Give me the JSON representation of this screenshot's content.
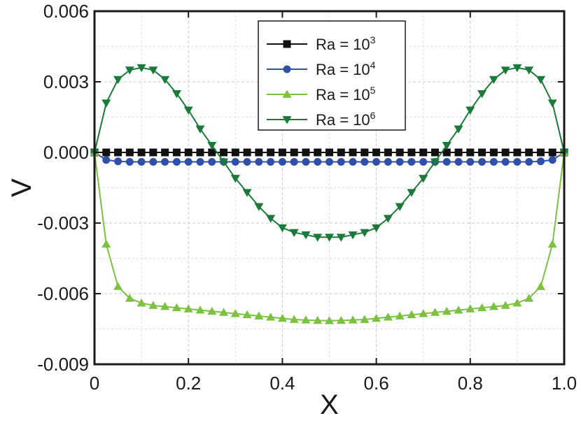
{
  "chart_data": {
    "type": "line",
    "title": "",
    "xlabel": "X",
    "ylabel": "V",
    "xlim": [
      0,
      1.0
    ],
    "ylim": [
      -0.009,
      0.006
    ],
    "grid": true,
    "x_ticks": [
      0,
      0.2,
      0.4,
      0.6,
      0.8,
      1.0
    ],
    "x_tick_labels": [
      "0",
      "0.2",
      "0.4",
      "0.6",
      "0.8",
      "1.0"
    ],
    "y_ticks": [
      -0.009,
      -0.006,
      -0.003,
      0.0,
      0.003,
      0.006
    ],
    "y_tick_labels": [
      "-0.009",
      "-0.006",
      "-0.003",
      "0.000",
      "0.003",
      "0.006"
    ],
    "legend_position": "top-center",
    "x": [
      0.0,
      0.025,
      0.05,
      0.075,
      0.1,
      0.125,
      0.15,
      0.175,
      0.2,
      0.225,
      0.25,
      0.275,
      0.3,
      0.325,
      0.35,
      0.375,
      0.4,
      0.425,
      0.45,
      0.475,
      0.5,
      0.525,
      0.55,
      0.575,
      0.6,
      0.625,
      0.65,
      0.675,
      0.7,
      0.725,
      0.75,
      0.775,
      0.8,
      0.825,
      0.85,
      0.875,
      0.9,
      0.925,
      0.95,
      0.975,
      1.0
    ],
    "series": [
      {
        "name": "Ra = 10^3",
        "label_base": "Ra = 10",
        "label_exp": "3",
        "color": "#111111",
        "marker": "square",
        "values": [
          0.0,
          0.0,
          0.0,
          0.0,
          0.0,
          0.0,
          0.0,
          0.0,
          0.0,
          0.0,
          0.0,
          0.0,
          0.0,
          0.0,
          0.0,
          0.0,
          0.0,
          0.0,
          0.0,
          0.0,
          0.0,
          0.0,
          0.0,
          0.0,
          0.0,
          0.0,
          0.0,
          0.0,
          0.0,
          0.0,
          0.0,
          0.0,
          0.0,
          0.0,
          0.0,
          0.0,
          0.0,
          0.0,
          0.0,
          0.0,
          0.0
        ]
      },
      {
        "name": "Ra = 10^4",
        "label_base": "Ra = 10",
        "label_exp": "4",
        "color": "#2f4fa8",
        "marker": "circle",
        "values": [
          0.0,
          -0.00032,
          -0.00038,
          -0.0004,
          -0.0004,
          -0.0004,
          -0.0004,
          -0.0004,
          -0.0004,
          -0.0004,
          -0.0004,
          -0.0004,
          -0.0004,
          -0.0004,
          -0.0004,
          -0.0004,
          -0.0004,
          -0.0004,
          -0.0004,
          -0.0004,
          -0.0004,
          -0.0004,
          -0.0004,
          -0.0004,
          -0.0004,
          -0.0004,
          -0.0004,
          -0.0004,
          -0.0004,
          -0.0004,
          -0.0004,
          -0.0004,
          -0.0004,
          -0.0004,
          -0.0004,
          -0.0004,
          -0.0004,
          -0.0004,
          -0.00038,
          -0.00032,
          0.0
        ]
      },
      {
        "name": "Ra = 10^5",
        "label_base": "Ra = 10",
        "label_exp": "5",
        "color": "#7cc142",
        "marker": "triangle-up",
        "values": [
          0.0,
          -0.0039,
          -0.0057,
          -0.0062,
          -0.0064,
          -0.0065,
          -0.00655,
          -0.0066,
          -0.00665,
          -0.0067,
          -0.00675,
          -0.0068,
          -0.00685,
          -0.0069,
          -0.00695,
          -0.007,
          -0.00705,
          -0.0071,
          -0.00712,
          -0.00714,
          -0.00715,
          -0.00714,
          -0.00712,
          -0.0071,
          -0.00705,
          -0.007,
          -0.00695,
          -0.0069,
          -0.00685,
          -0.0068,
          -0.00675,
          -0.0067,
          -0.00665,
          -0.0066,
          -0.00655,
          -0.0065,
          -0.0064,
          -0.0062,
          -0.0057,
          -0.0039,
          0.0
        ]
      },
      {
        "name": "Ra = 10^6",
        "label_base": "Ra = 10",
        "label_exp": "6",
        "color": "#1b7a3a",
        "marker": "triangle-down",
        "values": [
          0.0,
          0.0021,
          0.0031,
          0.0035,
          0.0036,
          0.0035,
          0.0031,
          0.0025,
          0.0018,
          0.001,
          0.0003,
          -0.0004,
          -0.0011,
          -0.0017,
          -0.0023,
          -0.0028,
          -0.0032,
          -0.0034,
          -0.0035,
          -0.0036,
          -0.0036,
          -0.0036,
          -0.0035,
          -0.0034,
          -0.0032,
          -0.0028,
          -0.0023,
          -0.0017,
          -0.0011,
          -0.0004,
          0.0003,
          0.001,
          0.0018,
          0.0025,
          0.0031,
          0.0035,
          0.0036,
          0.0035,
          0.0031,
          0.0021,
          0.0
        ]
      }
    ]
  }
}
